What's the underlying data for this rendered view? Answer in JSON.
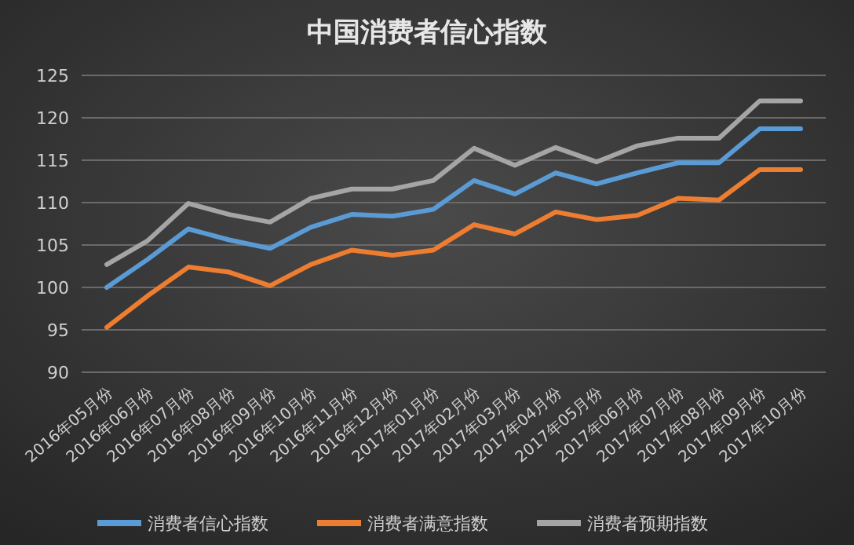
{
  "chart_data": {
    "type": "line",
    "title": "中国消费者信心指数",
    "categories": [
      "2016年05月份",
      "2016年06月份",
      "2016年07月份",
      "2016年08月份",
      "2016年09月份",
      "2016年10月份",
      "2016年11月份",
      "2016年12月份",
      "2017年01月份",
      "2017年02月份",
      "2017年03月份",
      "2017年04月份",
      "2017年05月份",
      "2017年06月份",
      "2017年07月份",
      "2017年08月份",
      "2017年09月份",
      "2017年10月份"
    ],
    "series": [
      {
        "name": "消费者信心指数",
        "color": "#5b9bd5",
        "values": [
          100,
          103.3,
          106.9,
          105.6,
          104.6,
          107.1,
          108.6,
          108.4,
          109.2,
          112.6,
          111,
          113.5,
          112.2,
          113.5,
          114.7,
          114.7,
          118.7,
          118.7
        ]
      },
      {
        "name": "消费者满意指数",
        "color": "#ed7d31",
        "values": [
          95.3,
          99,
          102.4,
          101.8,
          100.2,
          102.7,
          104.4,
          103.8,
          104.4,
          107.4,
          106.3,
          108.9,
          108,
          108.5,
          110.5,
          110.3,
          113.9,
          113.9
        ]
      },
      {
        "name": "消费者预期指数",
        "color": "#a5a5a5",
        "values": [
          102.7,
          105.5,
          109.9,
          108.6,
          107.7,
          110.5,
          111.6,
          111.6,
          112.6,
          116.4,
          114.4,
          116.5,
          114.8,
          116.7,
          117.6,
          117.6,
          122,
          122
        ]
      }
    ],
    "ylim": [
      90,
      125
    ],
    "yticks": [
      90,
      95,
      100,
      105,
      110,
      115,
      120,
      125
    ],
    "grid": "y",
    "legend": "bottom",
    "line_style": "solid",
    "marker": "none"
  }
}
